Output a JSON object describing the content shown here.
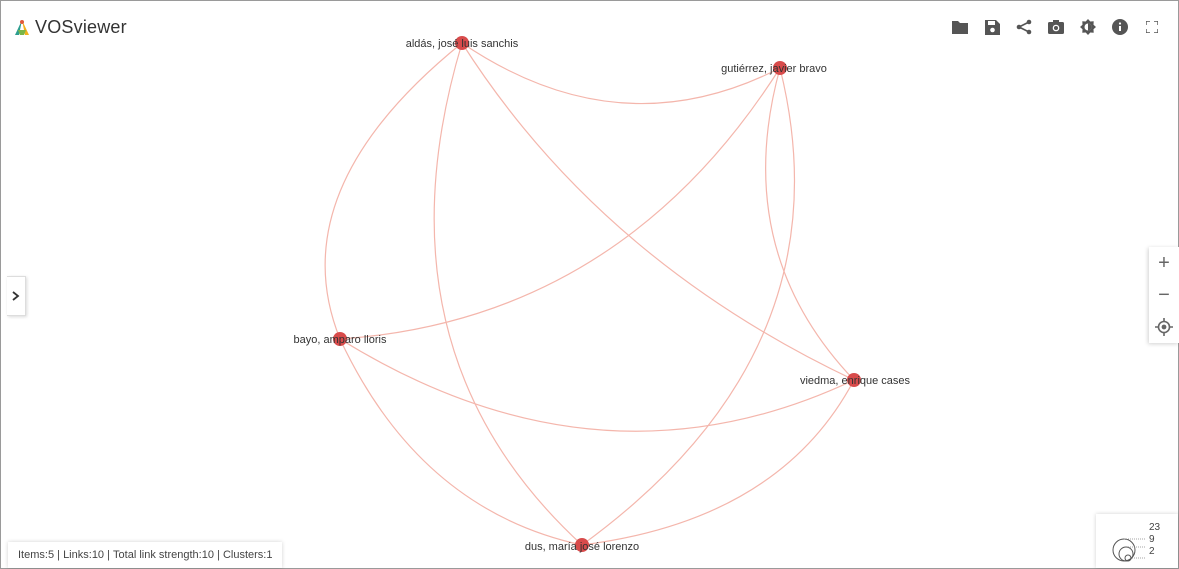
{
  "app": {
    "title": "VOSviewer"
  },
  "toolbar": {
    "icons": [
      "folder-icon",
      "save-icon",
      "share-icon",
      "camera-icon",
      "brightness-icon",
      "info-icon",
      "fullscreen-icon"
    ]
  },
  "colors": {
    "link": "#f4b6ac",
    "node": "#d84b4b",
    "label": "#333333"
  },
  "network": {
    "nodes": [
      {
        "label": "aldás, josé luis sanchis"
      },
      {
        "label": "gutiérrez, javier bravo"
      },
      {
        "label": "bayo, amparo lloris"
      },
      {
        "label": "viedma, enrique cases"
      },
      {
        "label": "dus, maría josé lorenzo"
      }
    ]
  },
  "status": {
    "items_label": "Items:",
    "items": "5",
    "links_label": "Links:",
    "links": "10",
    "strength_label": "Total link strength:",
    "strength": "10",
    "clusters_label": "Clusters:",
    "clusters": "1"
  },
  "legend": {
    "values": [
      "23",
      "9",
      "2"
    ]
  },
  "zoom": {
    "in": "+",
    "out": "−"
  }
}
